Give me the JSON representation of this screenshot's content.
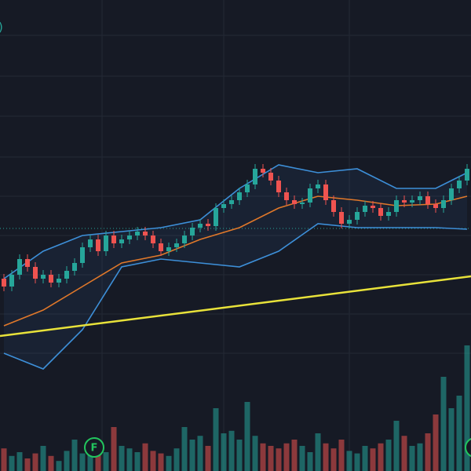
{
  "chart_data": {
    "type": "candlestick",
    "legend_fragment": ")",
    "ylim": [
      0,
      600
    ],
    "volume_lim": [
      0,
      100
    ],
    "grid_y": [
      555,
      503,
      452,
      400,
      350,
      300,
      250,
      200,
      150
    ],
    "grid_x": [
      12.5,
      28,
      44
    ],
    "up_color": "#26a69a",
    "down_color": "#ef5350",
    "open": [
      245,
      235,
      250,
      270,
      260,
      245,
      250,
      240,
      245,
      255,
      265,
      285,
      295,
      280,
      300,
      290,
      295,
      300,
      305,
      300,
      290,
      280,
      285,
      290,
      300,
      310,
      315,
      312,
      335,
      340,
      345,
      355,
      365,
      385,
      380,
      370,
      355,
      345,
      340,
      342,
      360,
      365,
      345,
      330,
      315,
      320,
      330,
      338,
      335,
      325,
      330,
      345,
      342,
      345,
      350,
      340,
      335,
      345,
      360,
      370
    ],
    "high": [
      251,
      256,
      276,
      276,
      266,
      256,
      256,
      251,
      261,
      271,
      291,
      301,
      301,
      306,
      306,
      301,
      306,
      311,
      311,
      306,
      296,
      291,
      296,
      306,
      316,
      321,
      321,
      341,
      346,
      351,
      361,
      371,
      391,
      391,
      386,
      376,
      361,
      351,
      348,
      366,
      371,
      371,
      351,
      336,
      326,
      336,
      344,
      344,
      341,
      336,
      351,
      351,
      351,
      356,
      356,
      346,
      351,
      366,
      376,
      391
    ],
    "low": [
      229,
      229,
      244,
      254,
      239,
      239,
      234,
      234,
      239,
      249,
      259,
      279,
      274,
      274,
      284,
      284,
      289,
      294,
      294,
      284,
      274,
      274,
      279,
      284,
      294,
      304,
      306,
      306,
      329,
      334,
      339,
      349,
      359,
      374,
      364,
      349,
      339,
      334,
      334,
      336,
      354,
      339,
      324,
      309,
      309,
      314,
      324,
      329,
      319,
      319,
      324,
      336,
      336,
      339,
      334,
      329,
      329,
      339,
      354,
      364
    ],
    "close": [
      235,
      250,
      270,
      260,
      245,
      250,
      240,
      245,
      255,
      265,
      285,
      295,
      280,
      300,
      290,
      295,
      300,
      305,
      300,
      290,
      280,
      285,
      290,
      300,
      310,
      315,
      312,
      335,
      340,
      345,
      355,
      365,
      385,
      380,
      370,
      355,
      345,
      340,
      342,
      360,
      365,
      345,
      330,
      315,
      320,
      330,
      338,
      335,
      325,
      330,
      345,
      342,
      345,
      350,
      340,
      335,
      345,
      360,
      370,
      385
    ],
    "volume": [
      18,
      12,
      15,
      10,
      14,
      20,
      12,
      8,
      16,
      25,
      14,
      18,
      22,
      15,
      35,
      20,
      18,
      15,
      22,
      16,
      14,
      12,
      18,
      35,
      25,
      28,
      20,
      50,
      30,
      32,
      25,
      55,
      28,
      22,
      20,
      18,
      22,
      25,
      20,
      15,
      30,
      22,
      18,
      25,
      16,
      14,
      20,
      18,
      22,
      25,
      40,
      28,
      20,
      22,
      30,
      45,
      75,
      50,
      60,
      100
    ],
    "lines": [
      {
        "name": "upper",
        "color": "#3d8fd8",
        "x": [
          0,
          5,
          10,
          15,
          20,
          25,
          30,
          35,
          40,
          45,
          50,
          55,
          59
        ],
        "values": [
          245,
          280,
          300,
          305,
          310,
          320,
          360,
          390,
          380,
          385,
          360,
          360,
          380
        ]
      },
      {
        "name": "lower",
        "color": "#3d8fd8",
        "x": [
          0,
          5,
          10,
          15,
          20,
          25,
          30,
          35,
          40,
          45,
          50,
          55,
          59
        ],
        "values": [
          150,
          130,
          180,
          260,
          270,
          265,
          260,
          280,
          315,
          310,
          310,
          310,
          308
        ]
      },
      {
        "name": "middle",
        "color": "#e0782a",
        "x": [
          0,
          5,
          10,
          15,
          20,
          25,
          30,
          35,
          40,
          45,
          50,
          55,
          59
        ],
        "values": [
          185,
          205,
          235,
          265,
          275,
          295,
          310,
          335,
          350,
          345,
          338,
          340,
          350
        ]
      },
      {
        "name": "trend",
        "color": "#e8e23a",
        "x": [
          -0.5,
          59.5
        ],
        "values": [
          172,
          248
        ]
      }
    ],
    "price_line": 309,
    "markers": [
      {
        "x": 11.5,
        "label": "F"
      },
      {
        "x": 60,
        "label": "F"
      }
    ]
  }
}
